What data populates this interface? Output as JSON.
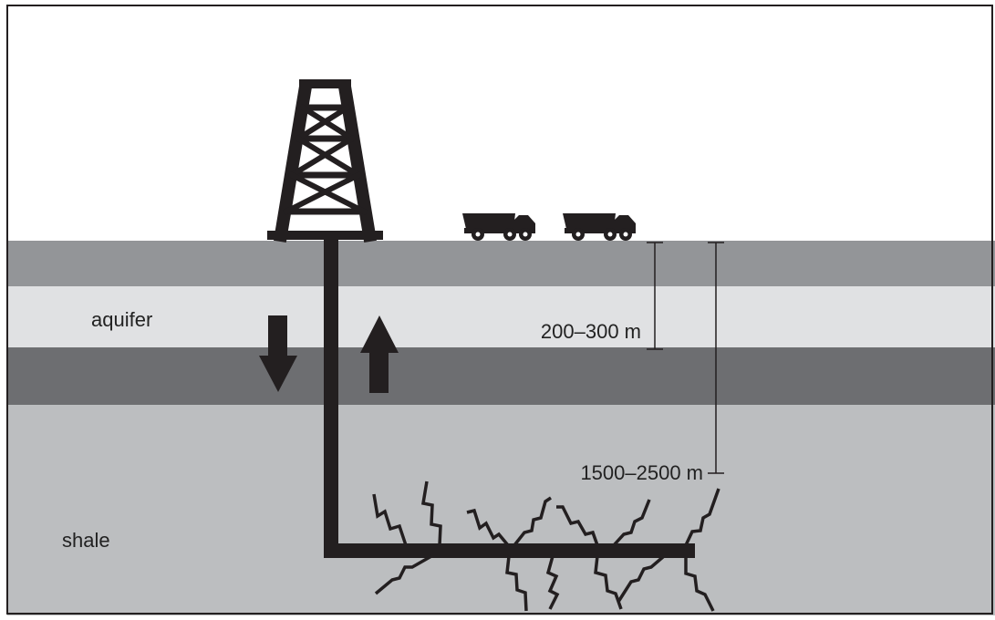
{
  "labels": {
    "aquifer": "aquifer",
    "shale": "shale",
    "depth_aquifer": "200–300 m",
    "depth_shale": "1500–2500 m"
  },
  "colors": {
    "sky": "#ffffff",
    "upper_layer": "#939598",
    "aquifer_layer": "#e0e1e3",
    "cap_layer": "#6d6e71",
    "shale_layer": "#bcbec0",
    "equipment": "#231f20"
  },
  "icons": [
    "drilling-rig-icon",
    "truck-icon",
    "down-arrow-icon",
    "up-arrow-icon",
    "fracture-icon"
  ]
}
